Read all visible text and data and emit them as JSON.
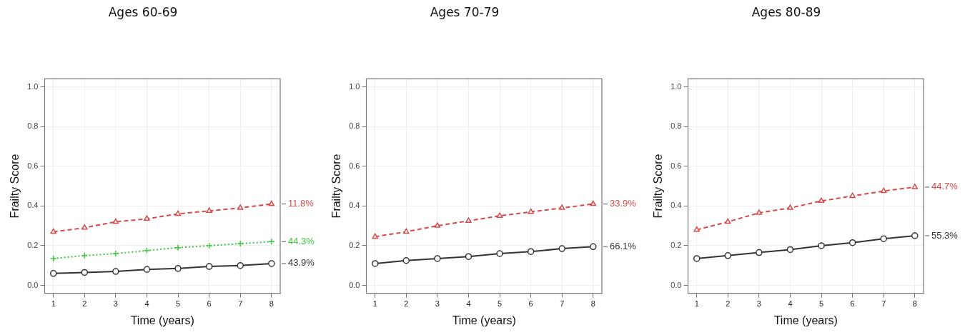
{
  "chart_data": [
    {
      "type": "line",
      "title": "Ages 60-69",
      "xlabel": "Time (years)",
      "ylabel": "Frailty Score",
      "x": [
        1,
        2,
        3,
        4,
        5,
        6,
        7,
        8
      ],
      "xlim": [
        0.72,
        8.28
      ],
      "xticks": [
        1,
        2,
        3,
        4,
        5,
        6,
        7,
        8
      ],
      "ylim": [
        -0.04,
        1.04
      ],
      "yticks": [
        {
          "value": 0,
          "label": "0.0"
        },
        {
          "value": 0.2,
          "label": "0.2"
        },
        {
          "value": 0.4,
          "label": "0.4"
        },
        {
          "value": 0.6,
          "label": "0.6"
        },
        {
          "value": 0.8,
          "label": "0.8"
        },
        {
          "value": 1,
          "label": "1.0"
        }
      ],
      "grid": true,
      "legend": false,
      "series": [
        {
          "name": "11.8%",
          "color": "#d94848",
          "marker": "triangle",
          "line_style": "dashed",
          "values": [
            0.27,
            0.29,
            0.32,
            0.335,
            0.36,
            0.375,
            0.39,
            0.41
          ]
        },
        {
          "name": "44.3%",
          "color": "#3cc83c",
          "marker": "cross",
          "line_style": "dotted",
          "values": [
            0.135,
            0.15,
            0.16,
            0.175,
            0.19,
            0.2,
            0.21,
            0.22
          ]
        },
        {
          "name": "43.9%",
          "color": "#333333",
          "marker": "circle",
          "line_style": "solid",
          "values": [
            0.06,
            0.065,
            0.07,
            0.08,
            0.085,
            0.095,
            0.1,
            0.11
          ]
        }
      ]
    },
    {
      "type": "line",
      "title": "Ages 70-79",
      "xlabel": "Time (years)",
      "ylabel": "Frailty Score",
      "x": [
        1,
        2,
        3,
        4,
        5,
        6,
        7,
        8
      ],
      "xlim": [
        0.72,
        8.28
      ],
      "xticks": [
        1,
        2,
        3,
        4,
        5,
        6,
        7,
        8
      ],
      "ylim": [
        -0.04,
        1.04
      ],
      "yticks": [
        {
          "value": 0,
          "label": "0.0"
        },
        {
          "value": 0.2,
          "label": "0.2"
        },
        {
          "value": 0.4,
          "label": "0.4"
        },
        {
          "value": 0.6,
          "label": "0.6"
        },
        {
          "value": 0.8,
          "label": "0.8"
        },
        {
          "value": 1,
          "label": "1.0"
        }
      ],
      "grid": true,
      "legend": false,
      "series": [
        {
          "name": "33.9%",
          "color": "#d94848",
          "marker": "triangle",
          "line_style": "dashed",
          "values": [
            0.245,
            0.27,
            0.3,
            0.325,
            0.35,
            0.37,
            0.39,
            0.41
          ]
        },
        {
          "name": "66.1%",
          "color": "#333333",
          "marker": "circle",
          "line_style": "solid",
          "values": [
            0.11,
            0.125,
            0.135,
            0.145,
            0.16,
            0.17,
            0.185,
            0.195
          ]
        }
      ]
    },
    {
      "type": "line",
      "title": "Ages 80-89",
      "xlabel": "Time (years)",
      "ylabel": "Frailty Score",
      "x": [
        1,
        2,
        3,
        4,
        5,
        6,
        7,
        8
      ],
      "xlim": [
        0.72,
        8.28
      ],
      "xticks": [
        1,
        2,
        3,
        4,
        5,
        6,
        7,
        8
      ],
      "ylim": [
        -0.04,
        1.04
      ],
      "yticks": [
        {
          "value": 0,
          "label": "0.0"
        },
        {
          "value": 0.2,
          "label": "0.2"
        },
        {
          "value": 0.4,
          "label": "0.4"
        },
        {
          "value": 0.6,
          "label": "0.6"
        },
        {
          "value": 0.8,
          "label": "0.8"
        },
        {
          "value": 1,
          "label": "1.0"
        }
      ],
      "grid": true,
      "legend": false,
      "series": [
        {
          "name": "44.7%",
          "color": "#d94848",
          "marker": "triangle",
          "line_style": "dashed",
          "values": [
            0.28,
            0.32,
            0.365,
            0.39,
            0.425,
            0.45,
            0.475,
            0.495
          ]
        },
        {
          "name": "55.3%",
          "color": "#333333",
          "marker": "circle",
          "line_style": "solid",
          "values": [
            0.135,
            0.15,
            0.165,
            0.18,
            0.2,
            0.215,
            0.235,
            0.25
          ]
        }
      ]
    }
  ]
}
